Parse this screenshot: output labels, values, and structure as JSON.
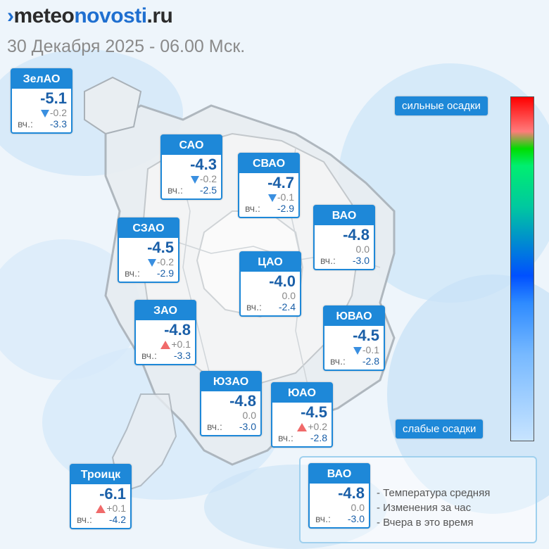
{
  "header": {
    "logo_mark": "›",
    "logo_part1": "meteo",
    "logo_part2": "novosti",
    "logo_part3": ".ru",
    "subtitle": "30 Декабря 2025 - 06.00 Мск."
  },
  "districts": [
    {
      "name": "ЗелАО",
      "temp": "-5.1",
      "trend": "down",
      "change": "-0.2",
      "yesterday_label": "вч.:",
      "yesterday": "-3.3"
    },
    {
      "name": "САО",
      "temp": "-4.3",
      "trend": "down",
      "change": "-0.2",
      "yesterday_label": "вч.:",
      "yesterday": "-2.5"
    },
    {
      "name": "СВАО",
      "temp": "-4.7",
      "trend": "down",
      "change": "-0.1",
      "yesterday_label": "вч.:",
      "yesterday": "-2.9"
    },
    {
      "name": "ВАО",
      "temp": "-4.8",
      "trend": "none",
      "change": "0.0",
      "yesterday_label": "вч.:",
      "yesterday": "-3.0"
    },
    {
      "name": "СЗАО",
      "temp": "-4.5",
      "trend": "down",
      "change": "-0.2",
      "yesterday_label": "вч.:",
      "yesterday": "-2.9"
    },
    {
      "name": "ЦАО",
      "temp": "-4.0",
      "trend": "none",
      "change": "0.0",
      "yesterday_label": "вч.:",
      "yesterday": "-2.4"
    },
    {
      "name": "ЗАО",
      "temp": "-4.8",
      "trend": "up",
      "change": "+0.1",
      "yesterday_label": "вч.:",
      "yesterday": "-3.3"
    },
    {
      "name": "ЮВАО",
      "temp": "-4.5",
      "trend": "down",
      "change": "-0.1",
      "yesterday_label": "вч.:",
      "yesterday": "-2.8"
    },
    {
      "name": "ЮЗАО",
      "temp": "-4.8",
      "trend": "none",
      "change": "0.0",
      "yesterday_label": "вч.:",
      "yesterday": "-3.0"
    },
    {
      "name": "ЮАО",
      "temp": "-4.5",
      "trend": "up",
      "change": "+0.2",
      "yesterday_label": "вч.:",
      "yesterday": "-2.8"
    },
    {
      "name": "Троицк",
      "temp": "-6.1",
      "trend": "up",
      "change": "+0.1",
      "yesterday_label": "вч.:",
      "yesterday": "-4.2"
    }
  ],
  "scale": {
    "top_label": "сильные осадки",
    "bottom_label": "слабые осадки"
  },
  "legend": {
    "example": {
      "name": "ВАО",
      "temp": "-4.8",
      "trend": "none",
      "change": "0.0",
      "yesterday_label": "вч.:",
      "yesterday": "-3.0"
    },
    "line1": "- Температура средняя",
    "line2": "- Изменения за час",
    "line3": "- Вчера в это время"
  },
  "colors": {
    "accent": "#1e88d8",
    "temp_text": "#1a5fa8",
    "trend_down": "#3a8fe0",
    "trend_up": "#f06a6a"
  }
}
